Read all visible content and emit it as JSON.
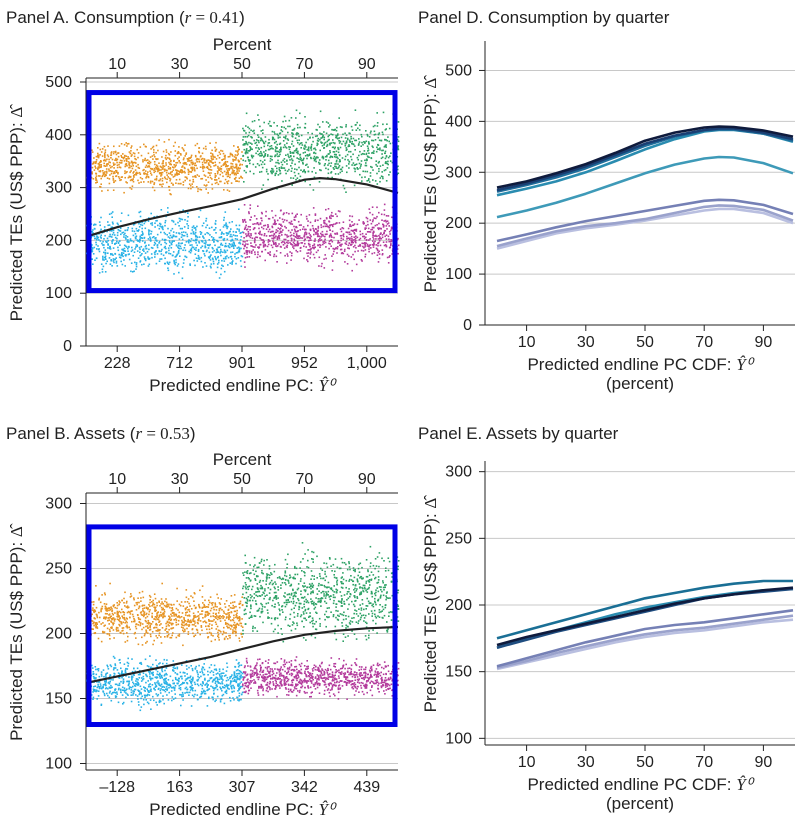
{
  "panels": {
    "A": {
      "title_prefix": "Panel A. Consumption (",
      "title_var": "r",
      "title_eq": " = 0.41",
      "title_suffix": ")"
    },
    "D": {
      "title": "Panel D. Consumption by quarter"
    },
    "B": {
      "title_prefix": "Panel B. Assets (",
      "title_var": "r",
      "title_eq": " = 0.53",
      "title_suffix": ")"
    },
    "E": {
      "title": "Panel E. Assets by quarter"
    }
  },
  "chart_data": [
    {
      "id": "A",
      "type": "scatter",
      "title": "Panel A. Consumption (r = 0.41)",
      "ylabel": "Predicted TEs (US$ PPP): Δ̂",
      "xlabel": "Predicted endline PC: Ŷ⁰",
      "top_axis_label": "Percent",
      "top_ticks": [
        "10",
        "30",
        "50",
        "70",
        "90"
      ],
      "x_tick_labels": [
        "228",
        "712",
        "901",
        "952",
        "1,000"
      ],
      "x_tick_percent": [
        10,
        30,
        50,
        70,
        90
      ],
      "yticks": [
        0,
        100,
        200,
        300,
        400,
        500
      ],
      "ylim": [
        0,
        500
      ],
      "grid": true,
      "groups": [
        {
          "name": "orange",
          "color": "#e69424",
          "x_pct": [
            0,
            50
          ],
          "y": [
            280,
            400
          ]
        },
        {
          "name": "blue",
          "color": "#29b2e6",
          "x_pct": [
            0,
            50
          ],
          "y": [
            120,
            275
          ]
        },
        {
          "name": "green",
          "color": "#2ea266",
          "x_pct": [
            50,
            100
          ],
          "y": [
            280,
            460
          ]
        },
        {
          "name": "purple",
          "color": "#b33b9c",
          "x_pct": [
            50,
            100
          ],
          "y": [
            140,
            278
          ]
        }
      ],
      "fit_line": {
        "x": [
          0,
          10,
          20,
          30,
          40,
          50,
          60,
          70,
          75,
          80,
          90,
          100
        ],
        "y": [
          207,
          225,
          240,
          253,
          265,
          278,
          298,
          315,
          318,
          316,
          306,
          290
        ]
      },
      "highlight_box": {
        "color": "#0000e6",
        "y_range": [
          105,
          480
        ]
      }
    },
    {
      "id": "D",
      "type": "line",
      "title": "Panel D. Consumption by quarter",
      "ylabel": "Predicted TEs (US$ PPP): Δ̂",
      "xlabel": "Predicted endline PC CDF: Ŷ⁰",
      "xlabel_line2": "(percent)",
      "xticks": [
        10,
        30,
        50,
        70,
        90
      ],
      "yticks": [
        0,
        100,
        200,
        300,
        400,
        500
      ],
      "ylim": [
        0,
        550
      ],
      "grid": true,
      "x": [
        0,
        10,
        20,
        30,
        40,
        50,
        60,
        70,
        75,
        80,
        90,
        100
      ],
      "series": [
        {
          "color": "#0f1b3d",
          "values": [
            270,
            282,
            298,
            316,
            338,
            362,
            378,
            388,
            390,
            389,
            382,
            370
          ]
        },
        {
          "color": "#1a3f73",
          "values": [
            265,
            278,
            294,
            312,
            334,
            356,
            372,
            383,
            386,
            386,
            378,
            365
          ]
        },
        {
          "color": "#1f6c9a",
          "values": [
            262,
            275,
            290,
            308,
            330,
            352,
            370,
            382,
            384,
            384,
            376,
            362
          ]
        },
        {
          "color": "#2a8cb0",
          "values": [
            255,
            268,
            282,
            300,
            322,
            345,
            365,
            380,
            383,
            383,
            376,
            360
          ]
        },
        {
          "color": "#3e9ab8",
          "values": [
            212,
            225,
            240,
            258,
            278,
            298,
            315,
            327,
            330,
            329,
            318,
            298
          ]
        },
        {
          "color": "#7580b5",
          "values": [
            165,
            178,
            192,
            204,
            214,
            224,
            234,
            244,
            246,
            245,
            236,
            218
          ]
        },
        {
          "color": "#9aa2cc",
          "values": [
            155,
            170,
            184,
            194,
            200,
            208,
            220,
            232,
            235,
            234,
            226,
            205
          ]
        },
        {
          "color": "#b9bfe0",
          "values": [
            150,
            165,
            180,
            190,
            197,
            205,
            215,
            225,
            228,
            228,
            220,
            200
          ]
        }
      ]
    },
    {
      "id": "B",
      "type": "scatter",
      "title": "Panel B. Assets (r = 0.53)",
      "ylabel": "Predicted TEs (US$ PPP): Δ̂",
      "xlabel": "Predicted endline PC: Ŷ⁰",
      "top_axis_label": "Percent",
      "top_ticks": [
        "10",
        "30",
        "50",
        "70",
        "90"
      ],
      "x_tick_labels": [
        "–128",
        "163",
        "307",
        "342",
        "439"
      ],
      "x_tick_percent": [
        10,
        30,
        50,
        70,
        90
      ],
      "yticks": [
        100,
        150,
        200,
        250,
        300
      ],
      "ylim": [
        95,
        305
      ],
      "grid": true,
      "groups": [
        {
          "name": "orange",
          "color": "#e69424",
          "x_pct": [
            0,
            50
          ],
          "y": [
            187,
            240
          ]
        },
        {
          "name": "blue",
          "color": "#29b2e6",
          "x_pct": [
            0,
            50
          ],
          "y": [
            140,
            186
          ]
        },
        {
          "name": "green",
          "color": "#2ea266",
          "x_pct": [
            50,
            100
          ],
          "y": [
            186,
            275
          ]
        },
        {
          "name": "purple",
          "color": "#b33b9c",
          "x_pct": [
            50,
            100
          ],
          "y": [
            148,
            185
          ]
        }
      ],
      "fit_line": {
        "x": [
          0,
          10,
          20,
          30,
          40,
          50,
          60,
          70,
          80,
          90,
          100
        ],
        "y": [
          162,
          167,
          172,
          177,
          182,
          188,
          194,
          199,
          202,
          204,
          205
        ]
      },
      "highlight_box": {
        "color": "#0000e6",
        "y_range": [
          130,
          282
        ]
      }
    },
    {
      "id": "E",
      "type": "line",
      "title": "Panel E. Assets by quarter",
      "ylabel": "Predicted TEs (US$ PPP): Δ̂",
      "xlabel": "Predicted endline PC CDF: Ŷ⁰",
      "xlabel_line2": "(percent)",
      "xticks": [
        10,
        30,
        50,
        70,
        90
      ],
      "yticks": [
        100,
        150,
        200,
        250,
        300
      ],
      "ylim": [
        95,
        305
      ],
      "grid": true,
      "x": [
        0,
        10,
        20,
        30,
        40,
        50,
        60,
        70,
        80,
        90,
        100
      ],
      "series": [
        {
          "color": "#1a6f95",
          "values": [
            175,
            181,
            187,
            193,
            199,
            205,
            209,
            213,
            216,
            218,
            218
          ]
        },
        {
          "color": "#0f1b3d",
          "values": [
            170,
            176,
            181,
            186,
            191,
            196,
            201,
            205,
            208,
            211,
            213
          ]
        },
        {
          "color": "#1f4d80",
          "values": [
            168,
            174,
            180,
            185,
            190,
            195,
            200,
            205,
            208,
            210,
            212
          ]
        },
        {
          "color": "#2a8cb0",
          "values": [
            168,
            175,
            181,
            187,
            193,
            198,
            202,
            206,
            209,
            211,
            212
          ]
        },
        {
          "color": "#7580b5",
          "values": [
            154,
            160,
            166,
            172,
            177,
            182,
            185,
            187,
            190,
            193,
            196
          ]
        },
        {
          "color": "#9aa2cc",
          "values": [
            153,
            158,
            164,
            169,
            174,
            178,
            181,
            183,
            186,
            189,
            192
          ]
        },
        {
          "color": "#b9bfe0",
          "values": [
            152,
            157,
            162,
            167,
            172,
            176,
            179,
            181,
            184,
            187,
            189
          ]
        }
      ]
    }
  ]
}
